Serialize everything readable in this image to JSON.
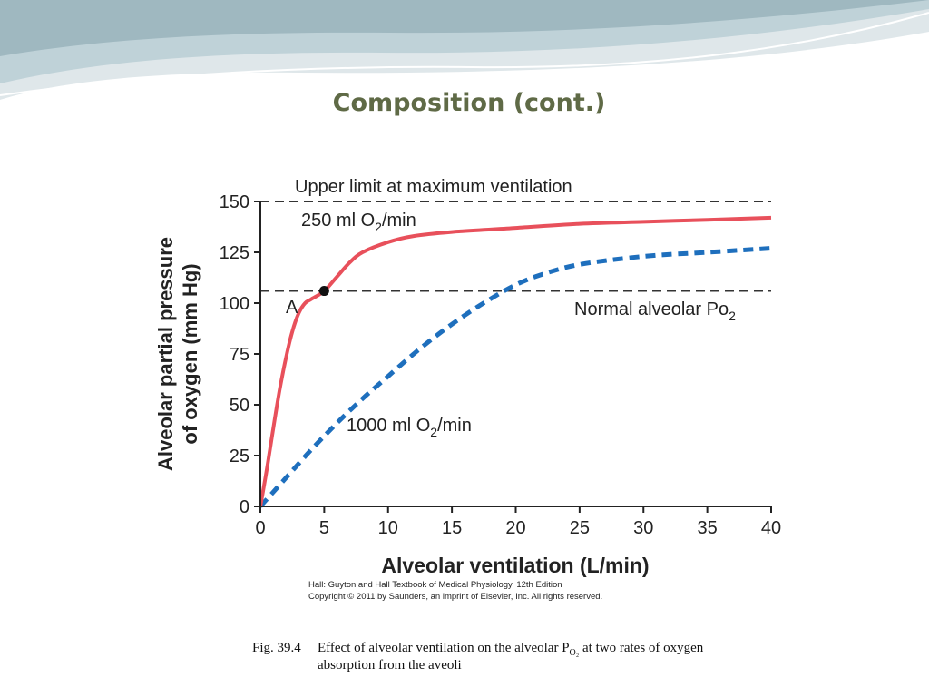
{
  "slide": {
    "title": "Composition (cont.)"
  },
  "caption": {
    "fig_label": "Fig. 39.4",
    "line1_before": "Effect of alveolar ventilation on the alveolar P",
    "sub": "O₂",
    "line1_after": " at two rates of oxygen",
    "line2": "absorption from the aveoli"
  },
  "chart_data": {
    "type": "line",
    "xlabel": "Alveolar ventilation (L/min)",
    "ylabel_line1": "Alveolar partial pressure",
    "ylabel_line2": "of oxygen (mm Hg)",
    "xlim": [
      0,
      40
    ],
    "ylim": [
      0,
      150
    ],
    "x_ticks": [
      0,
      5,
      10,
      15,
      20,
      25,
      30,
      35,
      40
    ],
    "y_ticks": [
      0,
      25,
      50,
      75,
      100,
      125,
      150
    ],
    "grid": false,
    "series": [
      {
        "name": "250 ml O2/min",
        "color": "#e8505b",
        "style": "solid",
        "x": [
          0,
          0.5,
          1,
          1.5,
          2,
          2.5,
          3,
          3.5,
          4,
          5,
          6,
          7,
          8,
          10,
          12,
          15,
          20,
          25,
          30,
          35,
          40
        ],
        "y": [
          0,
          18,
          38,
          57,
          73,
          86,
          95,
          100,
          102,
          106,
          113,
          120,
          125,
          130,
          133,
          135,
          137,
          139,
          140,
          141,
          142
        ]
      },
      {
        "name": "1000 ml O2/min",
        "color": "#1e6fbd",
        "style": "dashed",
        "x": [
          0,
          2,
          4,
          6,
          8,
          10,
          12,
          14,
          16,
          18,
          20,
          22,
          25,
          30,
          35,
          40
        ],
        "y": [
          0,
          14,
          28,
          41,
          53,
          64,
          75,
          85,
          94,
          102,
          109,
          114,
          119,
          123,
          125,
          127
        ]
      }
    ],
    "reference_lines": [
      {
        "label": "Upper limit at maximum ventilation",
        "y": 150
      },
      {
        "label_main": "Normal alveolar Po",
        "label_sub": "2",
        "y": 106
      }
    ],
    "point": {
      "label": "A",
      "x": 5,
      "y": 106
    },
    "labels": {
      "curve250_main": "250 ml O",
      "curve250_sub": "2",
      "curve250_tail": "/min",
      "curve1000_main": "1000 ml O",
      "curve1000_sub": "2",
      "curve1000_tail": "/min"
    },
    "credit_line1": "Hall: Guyton and Hall Textbook of Medical Physiology, 12th Edition",
    "credit_line2": "Copyright © 2011 by Saunders, an imprint of Elsevier, Inc. All rights reserved."
  }
}
